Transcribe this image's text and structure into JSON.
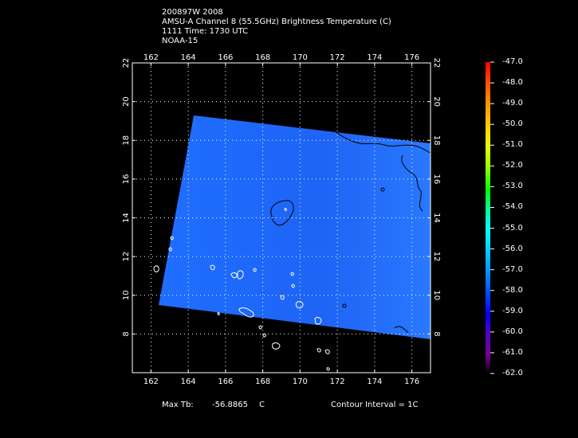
{
  "header": {
    "line1": "200897W 2008",
    "line2": "AMSU-A Channel 8 (55.5GHz) Brightness Temperature (C)",
    "line3": "1111 Time: 1730 UTC",
    "line4": "NOAA-15"
  },
  "axes": {
    "lon_ticks": [
      "162",
      "164",
      "166",
      "168",
      "170",
      "172",
      "174",
      "176"
    ],
    "lat_ticks": [
      "8",
      "10",
      "12",
      "14",
      "16",
      "18",
      "20",
      "22"
    ],
    "lon_range": [
      161,
      177
    ],
    "lat_range": [
      6,
      22
    ]
  },
  "colorbar": {
    "labels": [
      "-47.0",
      "-48.0",
      "-49.0",
      "-50.0",
      "-51.0",
      "-52.0",
      "-53.0",
      "-54.0",
      "-55.0",
      "-56.0",
      "-57.0",
      "-58.0",
      "-59.0",
      "-60.0",
      "-61.0",
      "-62.0"
    ],
    "colors": [
      "#ff0000",
      "#ff5a00",
      "#ff9600",
      "#ffc800",
      "#e6ff00",
      "#96ff00",
      "#00ff00",
      "#00ff96",
      "#00ffff",
      "#00c8ff",
      "#0096ff",
      "#0050ff",
      "#0000ff",
      "#5000c8",
      "#780096",
      "#000000"
    ]
  },
  "footer": {
    "max_label": "Max Tb:",
    "max_value": "-56.8865",
    "max_unit": "C",
    "contour": "Contour Interval = 1C"
  },
  "swath_color": "#1e78ff"
}
